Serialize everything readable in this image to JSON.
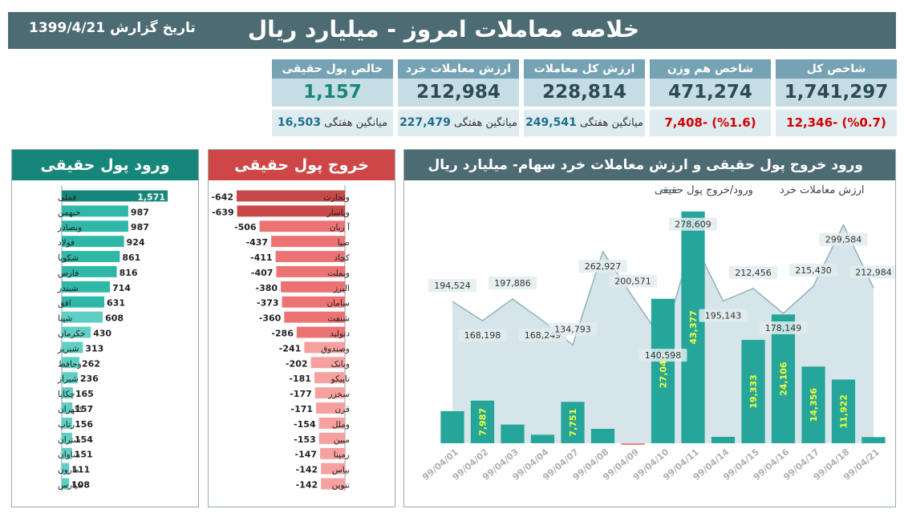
{
  "header": {
    "title": "خلاصه معاملات امروز - میلیارد ریال",
    "date_label": "تاریخ گزارش 1399/4/21"
  },
  "kpis": [
    {
      "title": "شاخص کل",
      "value": "1,741,297",
      "sub": "(%0.7) -12,346",
      "sub_type": "neg"
    },
    {
      "title": "شاخص هم وزن",
      "value": "471,274",
      "sub": "(%1.6) -7,408",
      "sub_type": "neg"
    },
    {
      "title": "ارزش کل معاملات",
      "value": "228,814",
      "sub_label": "میانگین هفتگی",
      "sub": "249,541",
      "sub_type": "avg"
    },
    {
      "title": "ارزش معاملات خرد",
      "value": "212,984",
      "sub_label": "میانگین هفتگی",
      "sub": "227,479",
      "sub_type": "avg"
    },
    {
      "title": "خالص پول حقیقی",
      "value": "1,157",
      "sub_label": "میانگین هفتگی",
      "sub": "16,503",
      "sub_type": "avg"
    }
  ],
  "inflow": {
    "title": "ورود پول حقیقی",
    "color": "#2fb8a8",
    "bars": [
      {
        "label": "فملی",
        "value": 1571,
        "text": "1,571"
      },
      {
        "label": "خبهمن",
        "value": 987,
        "text": "987"
      },
      {
        "label": "وبصادر",
        "value": 987,
        "text": "987"
      },
      {
        "label": "فولاد",
        "value": 924,
        "text": "924"
      },
      {
        "label": "شکویا",
        "value": 861,
        "text": "861"
      },
      {
        "label": "فارس",
        "value": 816,
        "text": "816"
      },
      {
        "label": "شبندر",
        "value": 714,
        "text": "714"
      },
      {
        "label": "افق",
        "value": 631,
        "text": "631"
      },
      {
        "label": "شپنا",
        "value": 608,
        "text": "608"
      },
      {
        "label": "خکرمان",
        "value": 430,
        "text": "430"
      },
      {
        "label": "شبریز",
        "value": 313,
        "text": "313"
      },
      {
        "label": "وحافظ",
        "value": 262,
        "text": "262"
      },
      {
        "label": "شیراز",
        "value": 236,
        "text": "236"
      },
      {
        "label": "چکاپا",
        "value": 165,
        "text": "165"
      },
      {
        "label": "کگهران",
        "value": 157,
        "text": "157"
      },
      {
        "label": "رتاپ",
        "value": 156,
        "text": "156"
      },
      {
        "label": "شتران",
        "value": 154,
        "text": "154"
      },
      {
        "label": "شاوان",
        "value": 151,
        "text": "151"
      },
      {
        "label": "مارون",
        "value": 111,
        "text": "111"
      },
      {
        "label": "خپارس",
        "value": 108,
        "text": "108"
      }
    ]
  },
  "outflow": {
    "title": "خروج پول حقیقی",
    "color": "#f08a8a",
    "bars": [
      {
        "label": "وتجارت",
        "value": -642,
        "text": "-642"
      },
      {
        "label": "وپاسار",
        "value": -639,
        "text": "-639"
      },
      {
        "label": "آ ریان",
        "value": -506,
        "text": "-506"
      },
      {
        "label": "صبا",
        "value": -437,
        "text": "-437"
      },
      {
        "label": "کچاد",
        "value": -411,
        "text": "-411"
      },
      {
        "label": "وبملت",
        "value": -407,
        "text": "-407"
      },
      {
        "label": "البرز",
        "value": -380,
        "text": "-380"
      },
      {
        "label": "سامان",
        "value": -373,
        "text": "-373"
      },
      {
        "label": "شنفت",
        "value": -360,
        "text": "-360"
      },
      {
        "label": "دتولید",
        "value": -286,
        "text": "-286"
      },
      {
        "label": "وصندوق",
        "value": -241,
        "text": "-241"
      },
      {
        "label": "وبانک",
        "value": -202,
        "text": "-202"
      },
      {
        "label": "تاپیکو",
        "value": -181,
        "text": "-181"
      },
      {
        "label": "سخزر",
        "value": -177,
        "text": "-177"
      },
      {
        "label": "قرن",
        "value": -171,
        "text": "-171"
      },
      {
        "label": "وملل",
        "value": -154,
        "text": "-154"
      },
      {
        "label": "مبین",
        "value": -153,
        "text": "-153"
      },
      {
        "label": "رمپنا",
        "value": -147,
        "text": "-147"
      },
      {
        "label": "بپاس",
        "value": -142,
        "text": "-142"
      },
      {
        "label": "تنوین",
        "value": -142,
        "text": "-142"
      }
    ]
  },
  "chart_data": {
    "type": "bar",
    "title": "ورود خروج پول حقیقی و ارزش معاملات خرد سهام- میلیارد ریال",
    "legend": {
      "area": "ارزش معاملات خرد",
      "bars": "ورود/خروج پول حقیقی"
    },
    "categories": [
      "99/04/01",
      "99/04/02",
      "99/04/03",
      "99/04/04",
      "99/04/07",
      "99/04/08",
      "99/04/09",
      "99/04/10",
      "99/04/11",
      "99/04/14",
      "99/04/15",
      "99/04/16",
      "99/04/17",
      "99/04/18",
      "99/04/21"
    ],
    "series": [
      {
        "name": "ارزش معاملات خرد",
        "kind": "area",
        "values": [
          194524,
          168198,
          197886,
          168249,
          134793,
          262927,
          200571,
          140598,
          278609,
          195143,
          212456,
          178149,
          215430,
          299584,
          212984
        ],
        "labels": [
          "194,524",
          "168,198",
          "197,886",
          "168,249",
          "134,793",
          "262,927",
          "200,571",
          "140,598",
          "278,609",
          "195,143",
          "212,456",
          "178,149",
          "215,430",
          "299,584",
          "212,984"
        ]
      },
      {
        "name": "ورود/خروج پول حقیقی",
        "kind": "bar",
        "values": [
          6000,
          7987,
          3500,
          1600,
          7751,
          2700,
          -300,
          27040,
          43377,
          1200,
          19333,
          24106,
          14356,
          11922,
          1157
        ],
        "labels": [
          "",
          "7,987",
          "",
          "",
          "7,751",
          "",
          "",
          "27,040",
          "43,377",
          "",
          "19,333",
          "24,106",
          "14,356",
          "11,922",
          ""
        ]
      }
    ],
    "area_ylim": [
      0,
      330000
    ],
    "bar_ylim": [
      -1000,
      45000
    ],
    "colors": {
      "area": "#cfe0e6",
      "area_line": "#8fb2be",
      "bar": "#26a69a",
      "bar_neg": "#f07f7f",
      "bar_label": "#f4ff3a"
    }
  },
  "colors": {
    "header": "#4d6b73",
    "inflow_title": "#17867a",
    "outflow_title": "#cf4646",
    "chart_title": "#4d6b73"
  }
}
